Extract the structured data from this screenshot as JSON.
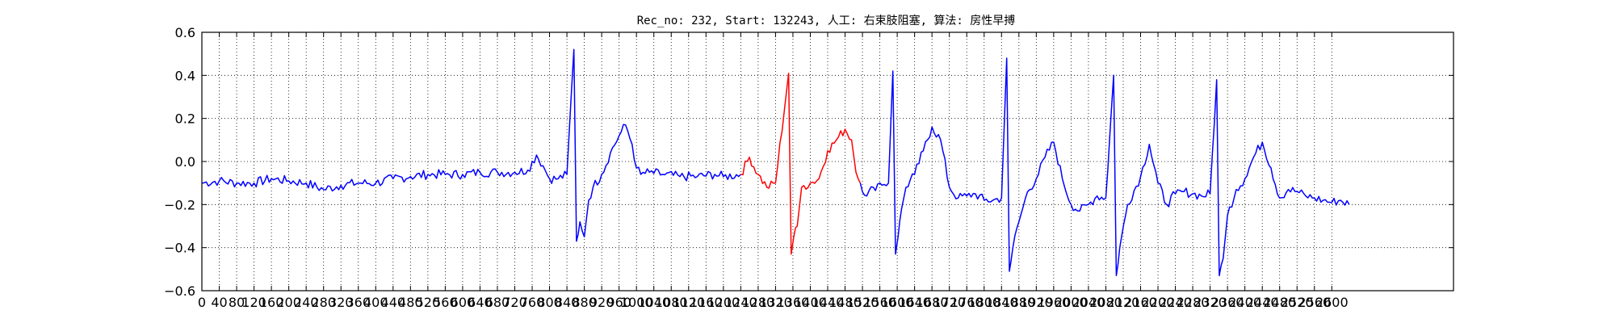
{
  "chart_data": {
    "type": "line",
    "title": "Rec_no: 232, Start: 132243, 人工: 右束肢阻塞, 算法: 房性早搏",
    "xlabel": "",
    "ylabel": "",
    "xlim": [
      0,
      2880
    ],
    "ylim": [
      -0.6,
      0.6
    ],
    "grid": true,
    "x_tick_labels": [
      "0",
      "40",
      "80",
      "120",
      "160",
      "200",
      "240",
      "280",
      "320",
      "360",
      "400",
      "440",
      "480",
      "520",
      "560",
      "600",
      "640",
      "680",
      "720",
      "760",
      "800",
      "840",
      "880",
      "920",
      "960",
      "1000",
      "1040",
      "1080",
      "1120",
      "1160",
      "1200",
      "1240",
      "1280",
      "1320",
      "1360",
      "1400",
      "1440",
      "1480",
      "1520",
      "1560",
      "1600",
      "1640",
      "1680",
      "1720",
      "1760",
      "1800",
      "1840",
      "1880",
      "1920",
      "1960",
      "2000",
      "2040",
      "2080",
      "2120",
      "2160",
      "2200",
      "2240",
      "2280",
      "2320",
      "2360",
      "2400",
      "2440",
      "2480",
      "2520",
      "2560",
      "2600"
    ],
    "y_tick_labels": [
      "0.6",
      "0.4",
      "0.2",
      "0.0",
      "−0.2",
      "−0.4",
      "−0.6"
    ],
    "colors": {
      "normal": "#0000ff",
      "highlight": "#ff0000"
    },
    "series": [
      {
        "color": "#0000ff",
        "x": [
          0,
          40,
          80,
          120,
          160,
          200,
          240,
          280,
          320,
          360,
          400,
          440,
          480,
          520,
          560,
          600,
          640,
          680,
          720,
          750,
          770,
          785,
          800,
          820,
          840,
          856,
          862,
          870,
          880,
          890,
          900,
          920,
          940,
          960,
          975,
          990,
          1000,
          1010,
          1030,
          1060,
          1100,
          1140,
          1180,
          1200,
          1240
        ],
        "y": [
          -0.1,
          -0.09,
          -0.1,
          -0.1,
          -0.08,
          -0.09,
          -0.1,
          -0.13,
          -0.11,
          -0.1,
          -0.1,
          -0.08,
          -0.07,
          -0.06,
          -0.06,
          -0.06,
          -0.05,
          -0.05,
          -0.05,
          -0.04,
          0.03,
          -0.02,
          -0.08,
          -0.08,
          -0.06,
          0.52,
          -0.37,
          -0.28,
          -0.35,
          -0.18,
          -0.12,
          -0.06,
          0.04,
          0.12,
          0.17,
          0.08,
          -0.03,
          -0.06,
          -0.05,
          -0.06,
          -0.07,
          -0.07,
          -0.06,
          -0.07,
          -0.06
        ]
      },
      {
        "color": "#ff0000",
        "x": [
          1240,
          1260,
          1280,
          1300,
          1320,
          1350,
          1356,
          1362,
          1370,
          1380,
          1400,
          1420,
          1440,
          1460,
          1480,
          1495,
          1505,
          1515
        ],
        "y": [
          -0.06,
          0.02,
          -0.06,
          -0.12,
          -0.1,
          0.41,
          -0.43,
          -0.35,
          -0.3,
          -0.12,
          -0.1,
          -0.08,
          0.05,
          0.1,
          0.15,
          0.1,
          -0.05,
          -0.1
        ]
      },
      {
        "color": "#0000ff",
        "x": [
          1515,
          1530,
          1545,
          1560,
          1580,
          1590,
          1596,
          1602,
          1610,
          1620,
          1640,
          1660,
          1680,
          1700,
          1720,
          1740,
          1760,
          1780,
          1800,
          1820,
          1840,
          1852,
          1858,
          1866,
          1880,
          1900,
          1920,
          1940,
          1960,
          1980,
          2000,
          2020,
          2040,
          2060,
          2080,
          2098,
          2104,
          2112,
          2130,
          2160,
          2180,
          2200,
          2220,
          2240,
          2260,
          2280,
          2300,
          2320,
          2335,
          2341,
          2350,
          2360,
          2380,
          2400,
          2420,
          2440,
          2460,
          2480,
          2500,
          2520,
          2540,
          2560,
          2580,
          2600,
          2620,
          2640
        ],
        "y": [
          -0.1,
          -0.16,
          -0.12,
          -0.1,
          -0.1,
          0.42,
          -0.43,
          -0.35,
          -0.22,
          -0.12,
          -0.06,
          0.05,
          0.16,
          0.1,
          -0.12,
          -0.17,
          -0.16,
          -0.15,
          -0.18,
          -0.18,
          -0.17,
          0.48,
          -0.51,
          -0.4,
          -0.28,
          -0.14,
          -0.08,
          0.02,
          0.09,
          -0.08,
          -0.2,
          -0.23,
          -0.2,
          -0.16,
          -0.17,
          0.4,
          -0.53,
          -0.4,
          -0.2,
          -0.07,
          0.08,
          -0.1,
          -0.2,
          -0.15,
          -0.14,
          -0.15,
          -0.16,
          -0.15,
          0.38,
          -0.53,
          -0.45,
          -0.25,
          -0.13,
          -0.08,
          0.02,
          0.09,
          -0.03,
          -0.17,
          -0.13,
          -0.14,
          -0.16,
          -0.17,
          -0.18,
          -0.19,
          -0.18,
          -0.2
        ]
      }
    ]
  }
}
